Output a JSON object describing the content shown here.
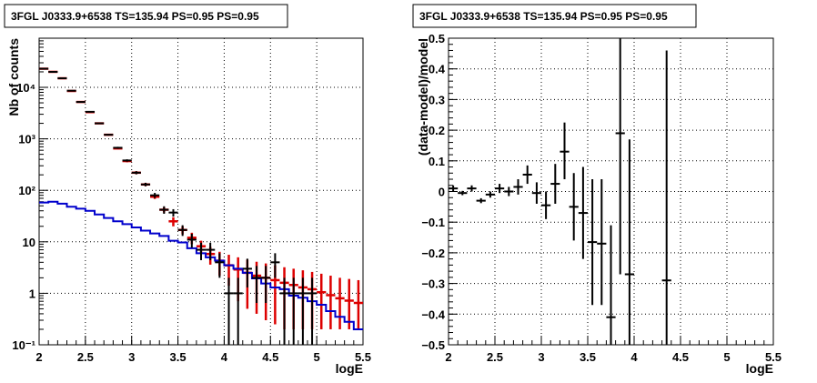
{
  "chart_data": [
    {
      "type": "line",
      "title": "3FGL J0333.9+6538 TS=135.94 PS=0.95 PS=0.95",
      "xlabel": "logE",
      "ylabel": "Nb of counts",
      "xlim": [
        2,
        5.5
      ],
      "ylim": [
        0.1,
        90000
      ],
      "yscale": "log",
      "grid": true,
      "x_ticks": [
        "2",
        "2.5",
        "3",
        "3.5",
        "4",
        "4.5",
        "5",
        "5.5"
      ],
      "y_ticks": [
        {
          "value": 0.1,
          "label": "10⁻¹"
        },
        {
          "value": 1,
          "label": "1"
        },
        {
          "value": 10,
          "label": "10"
        },
        {
          "value": 100,
          "label": "10²"
        },
        {
          "value": 1000,
          "label": "10³"
        },
        {
          "value": 10000,
          "label": "10⁴"
        }
      ],
      "bin_edges": [
        2.0,
        2.1,
        2.2,
        2.3,
        2.4,
        2.5,
        2.6,
        2.7,
        2.8,
        2.9,
        3.0,
        3.1,
        3.2,
        3.3,
        3.4,
        3.5,
        3.6,
        3.7,
        3.8,
        3.9,
        4.0,
        4.1,
        4.2,
        4.3,
        4.4,
        4.5,
        4.6,
        4.7,
        4.8,
        4.9,
        5.0,
        5.1,
        5.2,
        5.3,
        5.4,
        5.5
      ],
      "series": [
        {
          "color": "#dd0000",
          "style": "model-errorbar",
          "x": [
            2.05,
            2.15,
            2.25,
            2.35,
            2.45,
            2.55,
            2.65,
            2.75,
            2.85,
            2.95,
            3.05,
            3.15,
            3.25,
            3.35,
            3.45,
            3.55,
            3.65,
            3.75,
            3.85,
            3.95,
            4.05,
            4.15,
            4.25,
            4.35,
            4.45,
            4.55,
            4.65,
            4.75,
            4.85,
            4.95,
            5.05,
            5.15,
            5.25,
            5.35,
            5.45
          ],
          "y": [
            23000,
            20000,
            15000,
            8500,
            5200,
            3300,
            2000,
            1200,
            650,
            370,
            220,
            130,
            75,
            42,
            25,
            17,
            12,
            8.2,
            5.8,
            4.3,
            3.5,
            2.9,
            2.5,
            2.2,
            2.0,
            1.8,
            1.6,
            1.45,
            1.3,
            1.2,
            1.05,
            0.92,
            0.8,
            0.72,
            0.65
          ],
          "y_low": [
            22800,
            19800,
            14800,
            8400,
            5100,
            3200,
            1960,
            1150,
            630,
            350,
            205,
            120,
            68,
            37,
            20,
            14,
            9,
            6,
            3.6,
            2.2,
            1.4,
            0.7,
            0.5,
            0.4,
            0.3,
            0.25,
            0.2,
            0.2,
            0.2,
            0.2,
            0.2,
            0.2,
            0.2,
            0.2,
            0.2
          ],
          "y_high": [
            23200,
            20200,
            15200,
            8600,
            5300,
            3400,
            2040,
            1250,
            670,
            390,
            235,
            140,
            82,
            47,
            30,
            20,
            15,
            10.5,
            8,
            6.4,
            5.6,
            5,
            4.5,
            4.1,
            3.8,
            3.5,
            3.2,
            3,
            2.8,
            2.6,
            2.4,
            2.2,
            2,
            1.9,
            1.8
          ]
        },
        {
          "color": "#000000",
          "style": "data-errorbar",
          "x": [
            2.05,
            2.15,
            2.25,
            2.35,
            2.45,
            2.55,
            2.65,
            2.75,
            2.85,
            2.95,
            3.05,
            3.15,
            3.25,
            3.35,
            3.45,
            3.55,
            3.65,
            3.75,
            3.85,
            3.95,
            4.05,
            4.15,
            4.25,
            4.35,
            4.45,
            4.55,
            4.65,
            4.75,
            4.85,
            4.95
          ],
          "y": [
            23000,
            20000,
            15000,
            8600,
            5200,
            3350,
            2000,
            1200,
            670,
            380,
            220,
            130,
            80,
            42,
            37,
            17,
            11,
            7,
            7,
            4,
            1,
            1,
            3,
            2,
            2,
            4,
            1,
            1,
            1,
            1
          ],
          "y_low": [
            22800,
            19800,
            14800,
            8500,
            5100,
            3250,
            1950,
            1160,
            640,
            360,
            205,
            120,
            71,
            35,
            31,
            13,
            7.7,
            4.4,
            4.4,
            2,
            0.1,
            0.1,
            1.3,
            0.65,
            0.65,
            2,
            0.1,
            0.1,
            0.1,
            0.1
          ],
          "y_high": [
            23200,
            20200,
            15200,
            8700,
            5300,
            3450,
            2050,
            1240,
            700,
            400,
            235,
            140,
            89,
            49,
            43,
            21,
            14.3,
            9.6,
            9.6,
            6,
            2,
            2,
            4.7,
            3.4,
            3.4,
            6,
            2,
            2,
            2,
            2
          ]
        },
        {
          "color": "#0000cc",
          "style": "step",
          "y": [
            58,
            60,
            55,
            48,
            44,
            40,
            34,
            29,
            25,
            22,
            19,
            16.5,
            14.5,
            13,
            10.5,
            9.7,
            7.5,
            6,
            5,
            4.3,
            3.5,
            3,
            2.5,
            1.95,
            1.55,
            1.3,
            1.2,
            0.9,
            0.82,
            0.7,
            0.6,
            0.45,
            0.35,
            0.28,
            0.2
          ]
        }
      ]
    },
    {
      "type": "scatter",
      "title": "3FGL J0333.9+6538 TS=135.94 PS=0.95 PS=0.95",
      "xlabel": "logE",
      "ylabel": "(data-model)/model",
      "xlim": [
        2,
        5.5
      ],
      "ylim": [
        -0.5,
        0.5
      ],
      "grid": true,
      "x_ticks": [
        "2",
        "2.5",
        "3",
        "3.5",
        "4",
        "4.5",
        "5",
        "5.5"
      ],
      "y_ticks": [
        "−0.5",
        "−0.4",
        "−0.3",
        "−0.2",
        "−0.1",
        "0",
        "0.1",
        "0.2",
        "0.3",
        "0.4",
        "0.5"
      ],
      "series": [
        {
          "color": "#000000",
          "x": [
            2.05,
            2.15,
            2.25,
            2.35,
            2.45,
            2.55,
            2.65,
            2.75,
            2.85,
            2.95,
            3.05,
            3.15,
            3.25,
            3.35,
            3.45,
            3.55,
            3.65,
            3.75,
            3.85,
            3.95,
            4.35
          ],
          "y": [
            0.01,
            -0.005,
            0.01,
            -0.03,
            -0.01,
            0.01,
            0.0,
            0.015,
            0.055,
            -0.005,
            -0.045,
            0.025,
            0.13,
            -0.05,
            -0.07,
            -0.165,
            -0.17,
            -0.41,
            0.19,
            -0.27,
            -0.29
          ],
          "y_low": [
            0.0,
            -0.012,
            0.0,
            -0.038,
            -0.02,
            -0.005,
            -0.015,
            -0.01,
            0.025,
            -0.04,
            -0.09,
            -0.04,
            0.04,
            -0.16,
            -0.22,
            -0.37,
            -0.37,
            -0.56,
            -0.27,
            -0.52,
            -0.6
          ],
          "y_high": [
            0.02,
            0.002,
            0.02,
            -0.022,
            0.0,
            0.025,
            0.015,
            0.04,
            0.085,
            0.03,
            0.0,
            0.09,
            0.225,
            0.06,
            0.08,
            0.04,
            0.04,
            -0.11,
            0.6,
            0.17,
            0.46
          ],
          "x_err": [
            0.05,
            0.05,
            0.05,
            0.05,
            0.05,
            0.05,
            0.05,
            0.05,
            0.05,
            0.05,
            0.05,
            0.05,
            0.05,
            0.05,
            0.05,
            0.05,
            0.05,
            0.05,
            0.05,
            0.05,
            0.05
          ]
        }
      ]
    }
  ]
}
